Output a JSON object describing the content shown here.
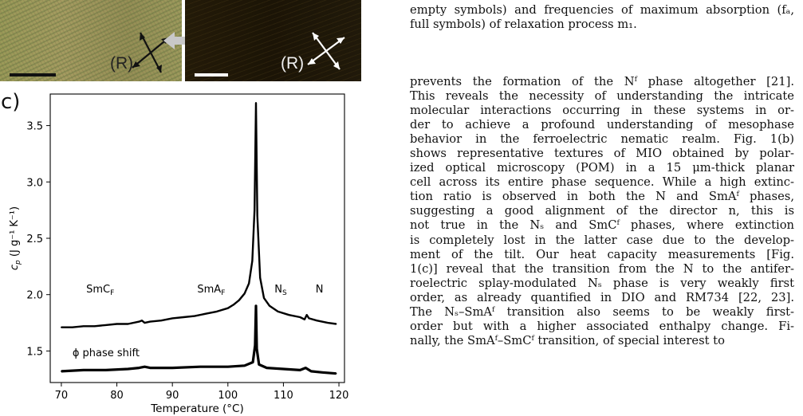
{
  "panel_c_label": "c)",
  "micrograph_left": {
    "polarizer_label": "(R)"
  },
  "micrograph_right": {
    "polarizer_label": "(R)"
  },
  "caption_tail": [
    "empty symbols) and frequencies of maximum absorption (fₐ,",
    "full symbols) of relaxation process m₁."
  ],
  "body_lines": [
    "prevents the formation of the Nᶠ phase altogether [21].",
    "This reveals the necessity of understanding the intricate",
    "molecular interactions occurring in these systems in or-",
    "der to achieve a profound understanding of mesophase",
    "behavior in the ferroelectric nematic realm. Fig. 1(b)",
    "shows representative textures of MIO obtained by polar-",
    "ized optical microscopy (POM) in a 15 μm-thick planar",
    "cell across its entire phase sequence. While a high extinc-",
    "tion ratio is observed in both the N and SmAᶠ phases,",
    "suggesting a good alignment of the director n, this is",
    "not true in the Nₛ and SmCᶠ phases, where extinction",
    "is completely lost in the latter case due to the develop-",
    "ment of the tilt. Our heat capacity measurements [Fig.",
    "1(c)] reveal that the transition from the N to the antifer-",
    "roelectric splay-modulated Nₛ phase is very weakly first",
    "order, as already quantified in DIO and RM734 [22, 23].",
    "The Nₛ–SmAᶠ transition also seems to be weakly first-",
    "order but with a higher associated enthalpy change. Fi-",
    "nally, the SmAᶠ–SmCᶠ transition, of special interest to"
  ],
  "chart_data": {
    "type": "line",
    "xlabel": "Temperature (°C)",
    "ylabel": "c_p (J g⁻¹ K⁻¹)",
    "xlim": [
      68,
      121
    ],
    "ylim": [
      1.22,
      3.78
    ],
    "x_ticks": [
      "70",
      "80",
      "90",
      "100",
      "110",
      "120"
    ],
    "y_ticks": [
      "1.5",
      "2.0",
      "2.5",
      "3.0",
      "3.5"
    ],
    "phase_labels": [
      {
        "text": "SmC",
        "sub": "F",
        "x": 77,
        "y": 2.02
      },
      {
        "text": "SmA",
        "sub": "F",
        "x": 97,
        "y": 2.02
      },
      {
        "text": "N",
        "sub": "S",
        "x": 109.5,
        "y": 2.02
      },
      {
        "text": "N",
        "sub": "",
        "x": 116.5,
        "y": 2.02
      }
    ],
    "annotation": "ϕ phase shift",
    "series": [
      {
        "x": [
          70,
          72,
          74,
          76,
          78,
          80,
          82,
          84,
          84.5,
          85,
          86,
          88,
          90,
          92,
          94,
          96,
          98,
          100,
          101,
          102,
          103,
          103.8,
          104.4,
          104.8,
          105.05,
          105.3,
          105.8,
          106.5,
          107.5,
          109,
          111,
          113,
          113.8,
          114.2,
          114.6,
          116,
          118,
          119.5
        ],
        "values": [
          1.71,
          1.71,
          1.72,
          1.72,
          1.73,
          1.74,
          1.74,
          1.76,
          1.77,
          1.75,
          1.76,
          1.77,
          1.79,
          1.8,
          1.81,
          1.83,
          1.85,
          1.88,
          1.91,
          1.95,
          2.01,
          2.1,
          2.3,
          2.75,
          3.7,
          2.7,
          2.15,
          1.97,
          1.9,
          1.85,
          1.82,
          1.8,
          1.78,
          1.82,
          1.79,
          1.77,
          1.75,
          1.74
        ]
      },
      {
        "x": [
          70,
          74,
          78,
          82,
          84,
          85,
          86,
          90,
          95,
          100,
          103,
          104.5,
          104.9,
          105.05,
          105.2,
          105.6,
          107,
          110,
          113,
          114,
          115,
          117,
          119.5
        ],
        "values": [
          1.32,
          1.33,
          1.33,
          1.34,
          1.35,
          1.36,
          1.35,
          1.35,
          1.36,
          1.36,
          1.37,
          1.4,
          1.55,
          1.9,
          1.52,
          1.38,
          1.35,
          1.34,
          1.33,
          1.35,
          1.32,
          1.31,
          1.3
        ]
      }
    ]
  }
}
